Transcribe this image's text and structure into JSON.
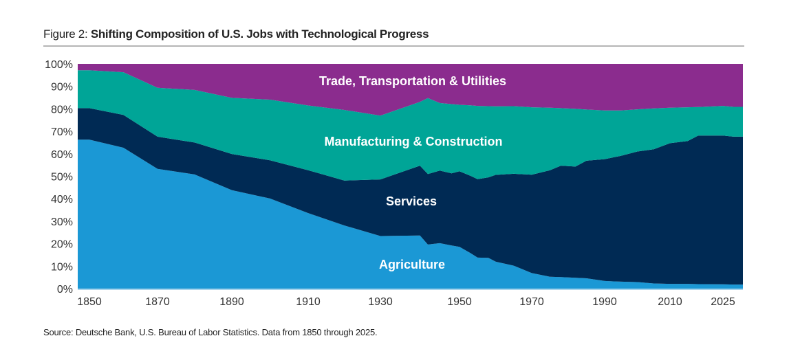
{
  "title": {
    "prefix": "Figure 2: ",
    "main": "Shifting Composition of U.S. Jobs with Technological Progress"
  },
  "source": "Source: Deutsche Bank, U.S. Bureau of Labor Statistics. Data from 1850 through 2025.",
  "chart_data": {
    "type": "area",
    "stacked": true,
    "title": "Shifting Composition of U.S. Jobs with Technological Progress",
    "xlabel": "",
    "ylabel": "",
    "ylim": [
      0,
      100
    ],
    "y_unit": "%",
    "grid": false,
    "legend": "inline labels",
    "x_ticks": [
      "1850",
      "1870",
      "1890",
      "1910",
      "1930",
      "1950",
      "1970",
      "1990",
      "2010",
      "2025"
    ],
    "y_ticks": [
      "0%",
      "10%",
      "20%",
      "30%",
      "40%",
      "50%",
      "60%",
      "70%",
      "80%",
      "90%",
      "100%"
    ],
    "x": [
      1850,
      1860,
      1870,
      1880,
      1890,
      1900,
      1910,
      1920,
      1930,
      1940,
      1942,
      1945,
      1948,
      1950,
      1953,
      1955,
      1958,
      1960,
      1965,
      1970,
      1975,
      1978,
      1982,
      1985,
      1990,
      1995,
      2000,
      2005,
      2010,
      2015,
      2018,
      2025,
      2028
    ],
    "series": [
      {
        "name": "Agriculture",
        "color": "#1B98D5",
        "values": [
          66.3,
          62.7,
          53.3,
          50.8,
          43.8,
          40.1,
          33.6,
          28.1,
          23.4,
          23.6,
          19.6,
          20.2,
          19.2,
          18.6,
          15.8,
          13.8,
          13.7,
          12.0,
          10.2,
          6.9,
          5.3,
          5.1,
          4.8,
          4.6,
          3.4,
          3.1,
          2.9,
          2.3,
          2.1,
          2.1,
          2.0,
          1.9,
          1.8
        ]
      },
      {
        "name": "Services",
        "color": "#002A54",
        "values": [
          14.0,
          14.6,
          14.3,
          14.2,
          16.1,
          17.0,
          19.1,
          20.0,
          25.2,
          31.1,
          31.4,
          32.3,
          32.1,
          33.6,
          34.4,
          34.9,
          35.8,
          38.6,
          40.9,
          43.8,
          47.4,
          49.6,
          49.5,
          52.3,
          54.2,
          56.0,
          58.1,
          59.7,
          62.6,
          63.6,
          66.1,
          66.2,
          65.8
        ]
      },
      {
        "name": "Manufacturing & Construction",
        "color": "#00A597",
        "values": [
          16.9,
          19.0,
          21.8,
          23.4,
          25.0,
          27.0,
          28.8,
          31.4,
          28.4,
          28.4,
          33.8,
          30.1,
          30.8,
          29.6,
          31.4,
          32.6,
          31.7,
          30.5,
          30.1,
          30.0,
          27.8,
          25.6,
          25.7,
          22.8,
          21.7,
          20.2,
          18.8,
          18.2,
          15.8,
          15.0,
          12.7,
          13.2,
          13.3
        ]
      },
      {
        "name": "Trade, Transportation & Utilities",
        "color": "#8B2C8E",
        "values": [
          2.8,
          3.7,
          10.6,
          11.6,
          15.1,
          15.9,
          18.5,
          20.5,
          23.0,
          16.9,
          15.2,
          17.4,
          17.9,
          18.2,
          18.4,
          18.7,
          18.8,
          18.9,
          18.8,
          19.3,
          19.5,
          19.7,
          20.0,
          20.3,
          20.7,
          20.7,
          20.2,
          19.8,
          19.5,
          19.3,
          19.2,
          18.7,
          19.1
        ]
      }
    ]
  }
}
